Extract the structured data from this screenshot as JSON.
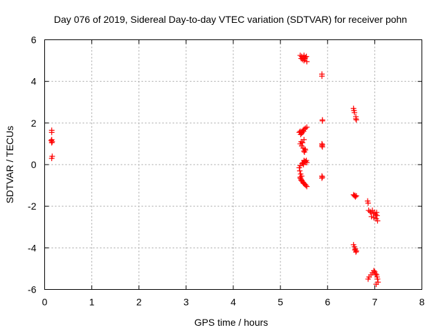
{
  "chart_data": {
    "type": "scatter",
    "title": "Day 076 of 2019, Sidereal Day-to-day VTEC variation (SDTVAR) for receiver pohn",
    "xlabel": "GPS time / hours",
    "ylabel": "SDTVAR / TECUs",
    "xlim": [
      0,
      8
    ],
    "ylim": [
      -6,
      6
    ],
    "xticks": [
      0,
      1,
      2,
      3,
      4,
      5,
      6,
      7,
      8
    ],
    "yticks": [
      -6,
      -4,
      -2,
      0,
      2,
      4,
      6
    ],
    "xtick_labels": [
      "0",
      "1",
      "2",
      "3",
      "4",
      "5",
      "6",
      "7",
      "8"
    ],
    "ytick_labels": [
      "-6",
      "-4",
      "-2",
      "0",
      "2",
      "4",
      "6"
    ],
    "grid": true,
    "marker": "+",
    "color": "#ff0000",
    "series": [
      {
        "name": "SDTVAR",
        "x": [
          0.15,
          0.15,
          0.15,
          0.16,
          0.15,
          0.14,
          0.16,
          0.15,
          5.42,
          5.45,
          5.48,
          5.5,
          5.52,
          5.55,
          5.47,
          5.5,
          5.53,
          5.56,
          5.44,
          5.4,
          5.42,
          5.45,
          5.48,
          5.5,
          5.53,
          5.56,
          5.43,
          5.46,
          5.49,
          5.42,
          5.44,
          5.47,
          5.5,
          5.45,
          5.48,
          5.52,
          5.5,
          5.53,
          5.51,
          5.48,
          5.5,
          5.53,
          5.56,
          5.46,
          5.49,
          5.52,
          5.55,
          5.42,
          5.4,
          5.41,
          5.43,
          5.45,
          5.42,
          5.44,
          5.42,
          5.44,
          5.46,
          5.48,
          5.5,
          5.52,
          5.54,
          5.56,
          5.45,
          5.49,
          5.88,
          5.88,
          5.89,
          5.89,
          5.88,
          5.89,
          5.88,
          5.89,
          5.88,
          5.88,
          5.89,
          6.55,
          6.56,
          6.57,
          6.6,
          6.6,
          6.61,
          6.55,
          6.57,
          6.59,
          6.61,
          6.58,
          6.55,
          6.57,
          6.59,
          6.61,
          6.6,
          6.58,
          6.85,
          6.86,
          6.87,
          6.9,
          6.92,
          6.95,
          6.97,
          7.0,
          7.02,
          7.05,
          6.93,
          6.98,
          7.03,
          7.06,
          7.04,
          6.86,
          6.88,
          6.92,
          6.95,
          6.98,
          7.0,
          7.02,
          7.04,
          7.05,
          7.06,
          7.07,
          7.03
        ],
        "y": [
          1.65,
          1.55,
          1.2,
          1.1,
          1.05,
          1.15,
          0.4,
          0.3,
          5.25,
          5.2,
          5.15,
          5.25,
          5.1,
          5.2,
          5.05,
          5.0,
          5.15,
          4.95,
          5.1,
          1.55,
          1.6,
          1.5,
          1.65,
          1.7,
          1.75,
          1.8,
          1.45,
          1.55,
          1.6,
          1.0,
          1.1,
          1.05,
          1.2,
          0.9,
          0.8,
          0.75,
          0.65,
          0.7,
          0.6,
          0.1,
          0.2,
          0.15,
          0.1,
          0.05,
          0.0,
          0.15,
          0.2,
          -0.05,
          -0.15,
          -0.3,
          -0.45,
          -0.55,
          -0.65,
          -0.75,
          -0.6,
          -0.7,
          -0.8,
          -0.85,
          -0.9,
          -0.95,
          -1.0,
          -1.05,
          -0.75,
          -0.9,
          4.35,
          4.25,
          2.15,
          2.1,
          1.0,
          0.95,
          0.9,
          0.85,
          -0.55,
          -0.65,
          -0.6,
          2.7,
          2.6,
          2.5,
          2.3,
          2.2,
          2.15,
          -1.45,
          -1.5,
          -1.55,
          -1.5,
          -1.48,
          -3.85,
          -3.95,
          -4.05,
          -4.15,
          -4.2,
          -4.1,
          -1.75,
          -1.85,
          -2.2,
          -2.25,
          -2.3,
          -2.2,
          -2.35,
          -2.3,
          -2.4,
          -2.45,
          -2.5,
          -2.55,
          -2.6,
          -2.7,
          -2.3,
          -5.5,
          -5.4,
          -5.3,
          -5.2,
          -5.1,
          -5.15,
          -5.25,
          -5.3,
          -5.4,
          -5.5,
          -5.65,
          -5.75
        ]
      }
    ]
  }
}
